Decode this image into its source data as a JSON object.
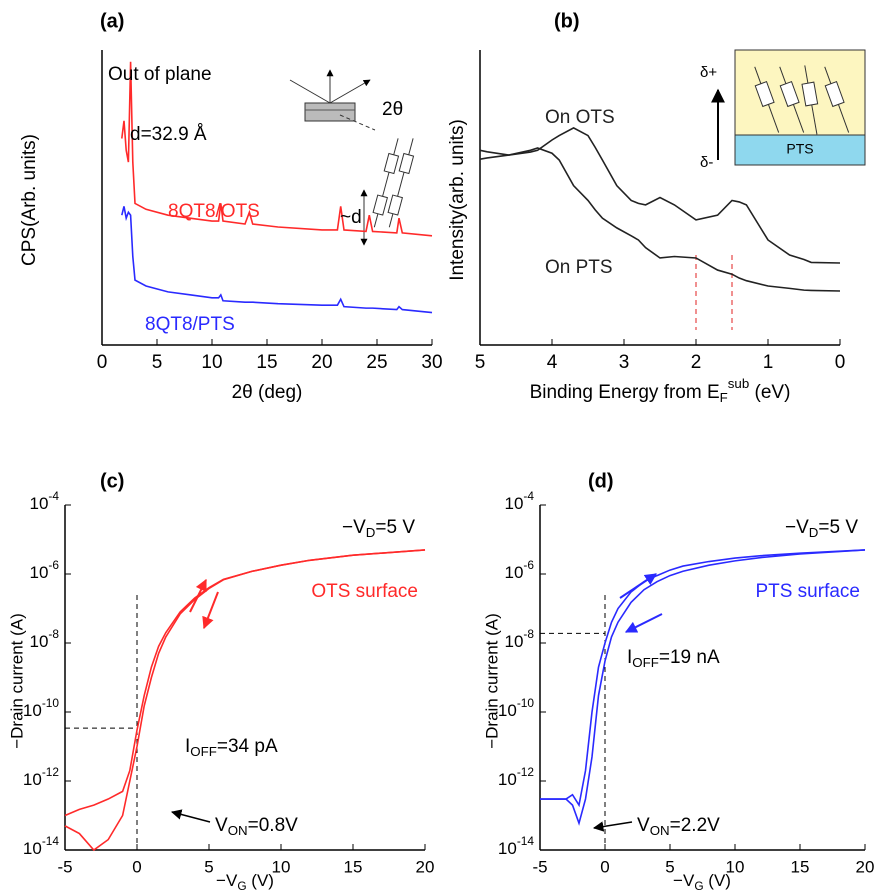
{
  "chart_data": [
    {
      "type": "line",
      "panel_label": "(a)",
      "xlabel": "2θ (deg)",
      "ylabel": "CPS(Arb. units)",
      "x": [
        1.8,
        2.0,
        2.2,
        2.4,
        2.6,
        2.8,
        3.0,
        4,
        6,
        8,
        10,
        10.6,
        10.8,
        11,
        13,
        13.4,
        13.7,
        16,
        20,
        21.4,
        21.7,
        22,
        24,
        24.3,
        24.6,
        26.8,
        27,
        27.3,
        30
      ],
      "xlim": [
        0,
        30
      ],
      "xticks": [
        0,
        5,
        10,
        15,
        20,
        25,
        30
      ],
      "ylim": [
        0,
        100
      ],
      "series": [
        {
          "name": "8QT8/OTS",
          "color": "#ff2a2a",
          "values": [
            70,
            76,
            66,
            62,
            96,
            62,
            48,
            46,
            44,
            43,
            42,
            42,
            48,
            42,
            41,
            45,
            41,
            40,
            39,
            39,
            47,
            39,
            38.5,
            44,
            38.5,
            38,
            43,
            38,
            37
          ]
        },
        {
          "name": "8QT8/PTS",
          "color": "#2a2aff",
          "values": [
            44,
            47,
            43,
            45,
            44,
            30,
            22,
            20,
            18,
            17,
            16,
            16,
            17,
            15,
            14.5,
            14.5,
            14.5,
            14,
            13.5,
            13.5,
            15.5,
            13,
            12.5,
            12.5,
            12.5,
            12,
            13,
            12,
            11
          ]
        }
      ],
      "annotations": [
        "Out of plane",
        "d=32.9 Å",
        "2θ",
        "~d"
      ]
    },
    {
      "type": "line",
      "panel_label": "(b)",
      "xlabel": "Binding Energy from EFsub (eV)",
      "ylabel": "Intensity(arb. units)",
      "x": [
        5,
        4.9,
        4.6,
        4.3,
        4.2,
        4.0,
        3.9,
        3.7,
        3.5,
        3.4,
        3.3,
        3.1,
        2.9,
        2.8,
        2.7,
        2.5,
        2.3,
        2.0,
        1.7,
        1.5,
        1.4,
        1.3,
        1.0,
        0.7,
        0.5,
        0.4,
        0
      ],
      "xlim": [
        5,
        0
      ],
      "xticks": [
        5,
        4,
        3,
        2,
        1,
        0
      ],
      "ylim": [
        0,
        100
      ],
      "series": [
        {
          "name": "On OTS",
          "color": "#222222",
          "values": [
            63,
            63.4,
            64.4,
            65.4,
            66,
            69.5,
            71,
            73.6,
            71,
            67,
            62.7,
            54,
            49,
            48,
            47.5,
            50,
            47.5,
            42.4,
            44,
            49,
            48.5,
            47.5,
            35.6,
            30.5,
            29,
            28,
            27.8
          ]
        },
        {
          "name": "On PTS",
          "color": "#222222",
          "values": [
            66,
            65.5,
            64.4,
            66,
            66.8,
            65,
            62.7,
            54,
            49,
            45.8,
            43,
            39.7,
            37,
            35.6,
            33,
            29.5,
            30,
            29.5,
            25.4,
            24,
            22.7,
            21.8,
            20,
            19.2,
            18.6,
            18.5,
            18.3
          ]
        }
      ],
      "ref_x": [
        2,
        1.5
      ],
      "annotations": [
        "δ+",
        "δ-",
        "PTS"
      ]
    },
    {
      "type": "line",
      "panel_label": "(c)",
      "xlabel": "−VG (V)",
      "ylabel": "−Drain current (A)",
      "yscale": "log",
      "x": [
        -5,
        -4,
        -3,
        -2,
        -1,
        -0.5,
        0,
        0.5,
        1,
        1.5,
        2,
        3,
        4,
        5,
        6,
        8,
        10,
        12,
        15,
        20
      ],
      "xlim": [
        -5,
        20
      ],
      "xticks": [
        -5,
        0,
        5,
        10,
        15,
        20
      ],
      "ylim": [
        1e-14,
        0.0001
      ],
      "yticks": [
        {
          "value": 1e-14,
          "label": "10-14"
        },
        {
          "value": 1e-12,
          "label": "10-12"
        },
        {
          "value": 1e-10,
          "label": "10-10"
        },
        {
          "value": 1e-08,
          "label": "10-8"
        },
        {
          "value": 1e-06,
          "label": "10-6"
        },
        {
          "value": 0.0001,
          "label": "10-4"
        }
      ],
      "series": [
        {
          "color": "#ff2a2a",
          "values": [
            1e-13,
            1.5e-13,
            2e-13,
            3e-13,
            5e-13,
            2e-12,
            3e-11,
            3e-10,
            2e-09,
            8e-09,
            2e-08,
            8e-08,
            2e-07,
            4e-07,
            7e-07,
            1.2e-06,
            1.8e-06,
            2.5e-06,
            3.5e-06,
            5e-06
          ]
        },
        {
          "color": "#ff2a2a",
          "values": [
            5e-14,
            3e-14,
            1e-14,
            2e-14,
            1e-13,
            1e-12,
            1e-11,
            1.5e-10,
            1e-09,
            5e-09,
            1.5e-08,
            7e-08,
            1.8e-07,
            3.8e-07,
            6.8e-07,
            1.2e-06,
            1.8e-06,
            2.5e-06,
            3.5e-06,
            5e-06
          ]
        }
      ],
      "ref_x": [
        0
      ],
      "ref_y": [
        3.4e-11
      ],
      "annotations": [
        "−VD=5 V",
        "OTS surface",
        "IOFF=34 pA",
        "VON=0.8V"
      ]
    },
    {
      "type": "line",
      "panel_label": "(d)",
      "xlabel": "−VG (V)",
      "ylabel": "−Drain current (A)",
      "yscale": "log",
      "x": [
        -5,
        -4,
        -3,
        -2.5,
        -2,
        -1.5,
        -1,
        -0.5,
        0,
        0.5,
        1,
        2,
        3,
        4,
        5,
        6,
        8,
        10,
        12,
        15,
        20
      ],
      "xlim": [
        -5,
        20
      ],
      "xticks": [
        -5,
        0,
        5,
        10,
        15,
        20
      ],
      "ylim": [
        1e-14,
        0.0001
      ],
      "yticks": [
        {
          "value": 1e-14,
          "label": "10-14"
        },
        {
          "value": 1e-12,
          "label": "10-12"
        },
        {
          "value": 1e-10,
          "label": "10-10"
        },
        {
          "value": 1e-08,
          "label": "10-8"
        },
        {
          "value": 1e-06,
          "label": "10-6"
        },
        {
          "value": 0.0001,
          "label": "10-4"
        }
      ],
      "series": [
        {
          "color": "#2a2aff",
          "values": [
            3e-13,
            3e-13,
            3e-13,
            4e-13,
            2e-13,
            2e-12,
            1e-10,
            2e-09,
            1e-08,
            4e-08,
            1e-07,
            3e-07,
            6e-07,
            9e-07,
            1.3e-06,
            1.7e-06,
            2.3e-06,
            2.9e-06,
            3.4e-06,
            4e-06,
            5e-06
          ]
        },
        {
          "color": "#2a2aff",
          "values": [
            3e-13,
            3e-13,
            3e-13,
            2e-13,
            6e-14,
            3e-13,
            5e-12,
            3e-10,
            3e-09,
            1.5e-08,
            4e-08,
            1.5e-07,
            3.5e-07,
            6e-07,
            9e-07,
            1.2e-06,
            1.8e-06,
            2.4e-06,
            3e-06,
            3.8e-06,
            5e-06
          ]
        }
      ],
      "ref_x": [
        0
      ],
      "ref_y": [
        1.9e-08
      ],
      "annotations": [
        "−VD=5 V",
        "PTS surface",
        "IOFF=19 nA",
        "VON=2.2V"
      ]
    }
  ]
}
